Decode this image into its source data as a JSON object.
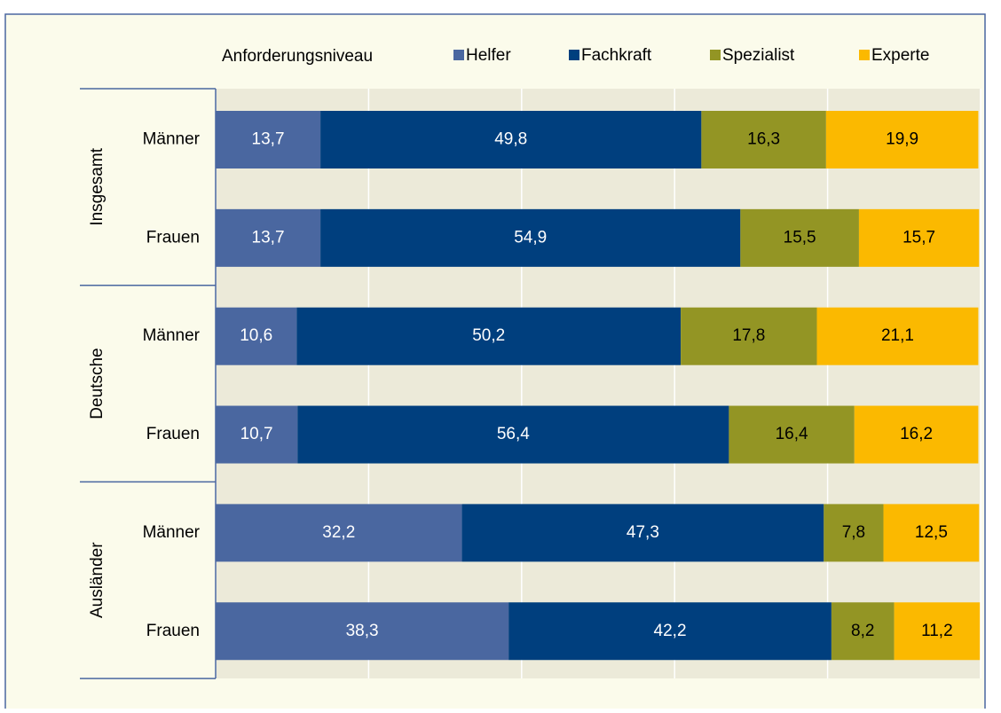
{
  "chart_data": {
    "type": "stacked_barh",
    "legend_title": "Anforderungsniveau",
    "groups": [
      "Insgesamt",
      "Deutsche",
      "Ausländer"
    ],
    "categories": [
      "Männer",
      "Frauen",
      "Männer",
      "Frauen",
      "Männer",
      "Frauen"
    ],
    "series": [
      {
        "name": "Helfer",
        "color": "#4a67a0",
        "values": [
          13.7,
          13.7,
          10.6,
          10.7,
          32.2,
          38.3
        ],
        "value_labels": [
          "13,7",
          "13,7",
          "10,6",
          "10,7",
          "32,2",
          "38,3"
        ]
      },
      {
        "name": "Fachkraft",
        "color": "#003f7e",
        "values": [
          49.8,
          54.9,
          50.2,
          56.4,
          47.3,
          42.2
        ],
        "value_labels": [
          "49,8",
          "54,9",
          "50,2",
          "56,4",
          "47,3",
          "42,2"
        ]
      },
      {
        "name": "Spezialist",
        "color": "#939524",
        "values": [
          16.3,
          15.5,
          17.8,
          16.4,
          7.8,
          8.2
        ],
        "value_labels": [
          "16,3",
          "15,5",
          "17,8",
          "16,4",
          "7,8",
          "8,2"
        ]
      },
      {
        "name": "Experte",
        "color": "#fbb900",
        "values": [
          19.9,
          15.7,
          21.1,
          16.2,
          12.5,
          11.2
        ],
        "value_labels": [
          "19,9",
          "15,7",
          "21,1",
          "16,2",
          "12,5",
          "11,2"
        ]
      }
    ],
    "xlim": [
      0,
      100
    ],
    "xticks": [
      0,
      20,
      40,
      60,
      80,
      100
    ],
    "grid": true
  }
}
